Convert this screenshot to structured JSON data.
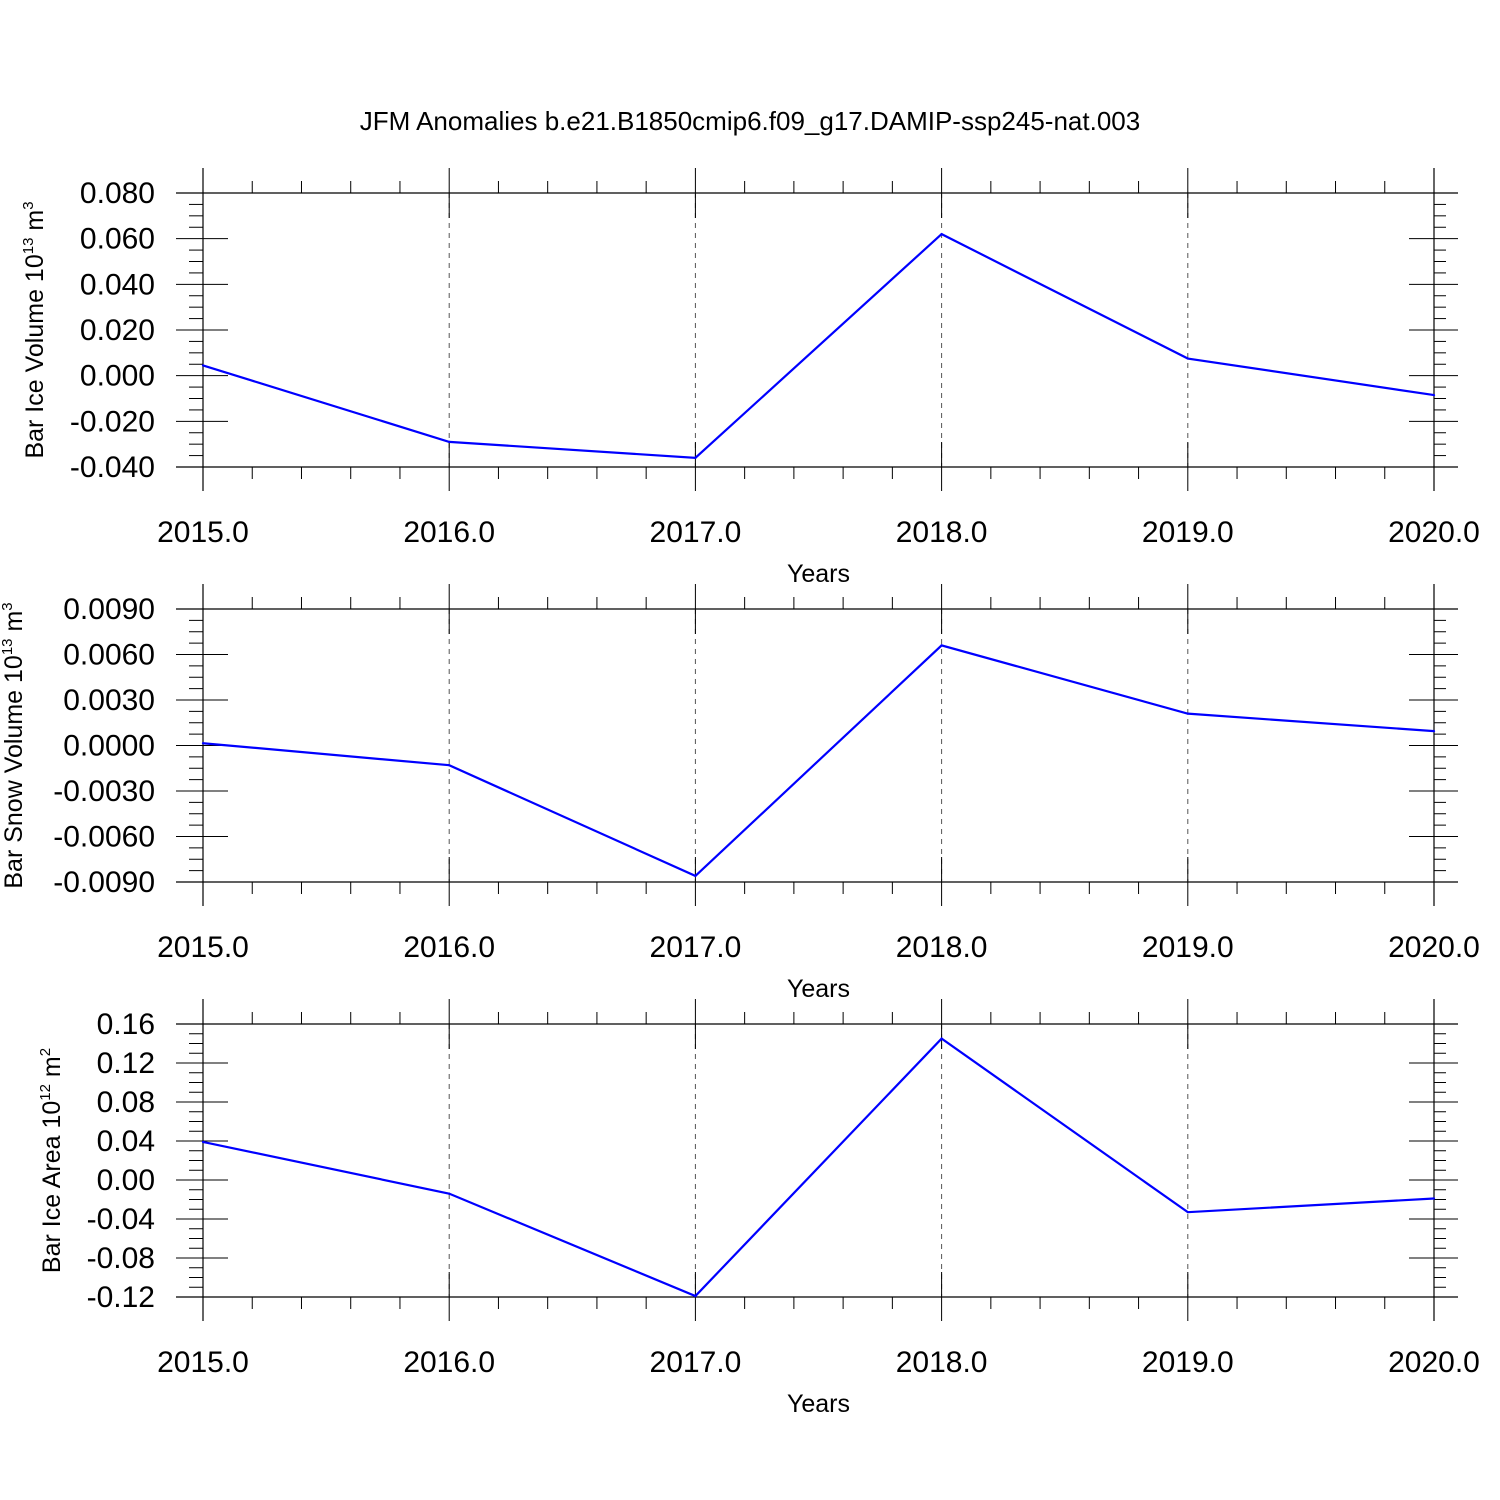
{
  "title": "JFM Anomalies b.e21.B1850cmip6.f09_g17.DAMIP-ssp245-nat.003",
  "colors": {
    "line": "#0000ff",
    "axis": "#000000",
    "grid": "#555555"
  },
  "chart_data": [
    {
      "type": "line",
      "xlabel": "Years",
      "ylabel": {
        "text": "Bar Ice Volume 10",
        "exp": "13",
        "unit": " m",
        "unit_exp": "3"
      },
      "xlim": [
        2015,
        2020
      ],
      "ylim": [
        -0.04,
        0.08
      ],
      "x_ticks": [
        "2015.0",
        "2016.0",
        "2017.0",
        "2018.0",
        "2019.0",
        "2020.0"
      ],
      "y_ticks": [
        "0.080",
        "0.060",
        "0.040",
        "0.020",
        "0.000",
        "-0.020",
        "-0.040"
      ],
      "y_tick_values": [
        0.08,
        0.06,
        0.04,
        0.02,
        0.0,
        -0.02,
        -0.04
      ],
      "x": [
        2015,
        2016,
        2017,
        2018,
        2019,
        2020
      ],
      "series": [
        {
          "values": [
            0.0045,
            -0.029,
            -0.036,
            0.062,
            0.0075,
            -0.0085
          ]
        }
      ],
      "grid": "dashed vertical at major x ticks"
    },
    {
      "type": "line",
      "xlabel": "Years",
      "ylabel": {
        "text": "Bar Snow Volume 10",
        "exp": "13",
        "unit": " m",
        "unit_exp": "3"
      },
      "xlim": [
        2015,
        2020
      ],
      "ylim": [
        -0.009,
        0.009
      ],
      "x_ticks": [
        "2015.0",
        "2016.0",
        "2017.0",
        "2018.0",
        "2019.0",
        "2020.0"
      ],
      "y_ticks": [
        "0.0090",
        "0.0060",
        "0.0030",
        "0.0000",
        "-0.0030",
        "-0.0060",
        "-0.0090"
      ],
      "y_tick_values": [
        0.009,
        0.006,
        0.003,
        0.0,
        -0.003,
        -0.006,
        -0.009
      ],
      "x": [
        2015,
        2016,
        2017,
        2018,
        2019,
        2020
      ],
      "series": [
        {
          "values": [
            0.00015,
            -0.0013,
            -0.0086,
            0.0066,
            0.0021,
            0.00095
          ]
        }
      ],
      "grid": "dashed vertical at major x ticks"
    },
    {
      "type": "line",
      "xlabel": "Years",
      "ylabel": {
        "text": "Bar Ice Area 10",
        "exp": "12",
        "unit": " m",
        "unit_exp": "2"
      },
      "xlim": [
        2015,
        2020
      ],
      "ylim": [
        -0.12,
        0.16
      ],
      "x_ticks": [
        "2015.0",
        "2016.0",
        "2017.0",
        "2018.0",
        "2019.0",
        "2020.0"
      ],
      "y_ticks": [
        "0.16",
        "0.12",
        "0.08",
        "0.04",
        "0.00",
        "-0.04",
        "-0.08",
        "-0.12"
      ],
      "y_tick_values": [
        0.16,
        0.12,
        0.08,
        0.04,
        0.0,
        -0.04,
        -0.08,
        -0.12
      ],
      "x": [
        2015,
        2016,
        2017,
        2018,
        2019,
        2020
      ],
      "series": [
        {
          "values": [
            0.039,
            -0.014,
            -0.119,
            0.145,
            -0.033,
            -0.019
          ]
        }
      ],
      "grid": "dashed vertical at major x ticks"
    }
  ]
}
